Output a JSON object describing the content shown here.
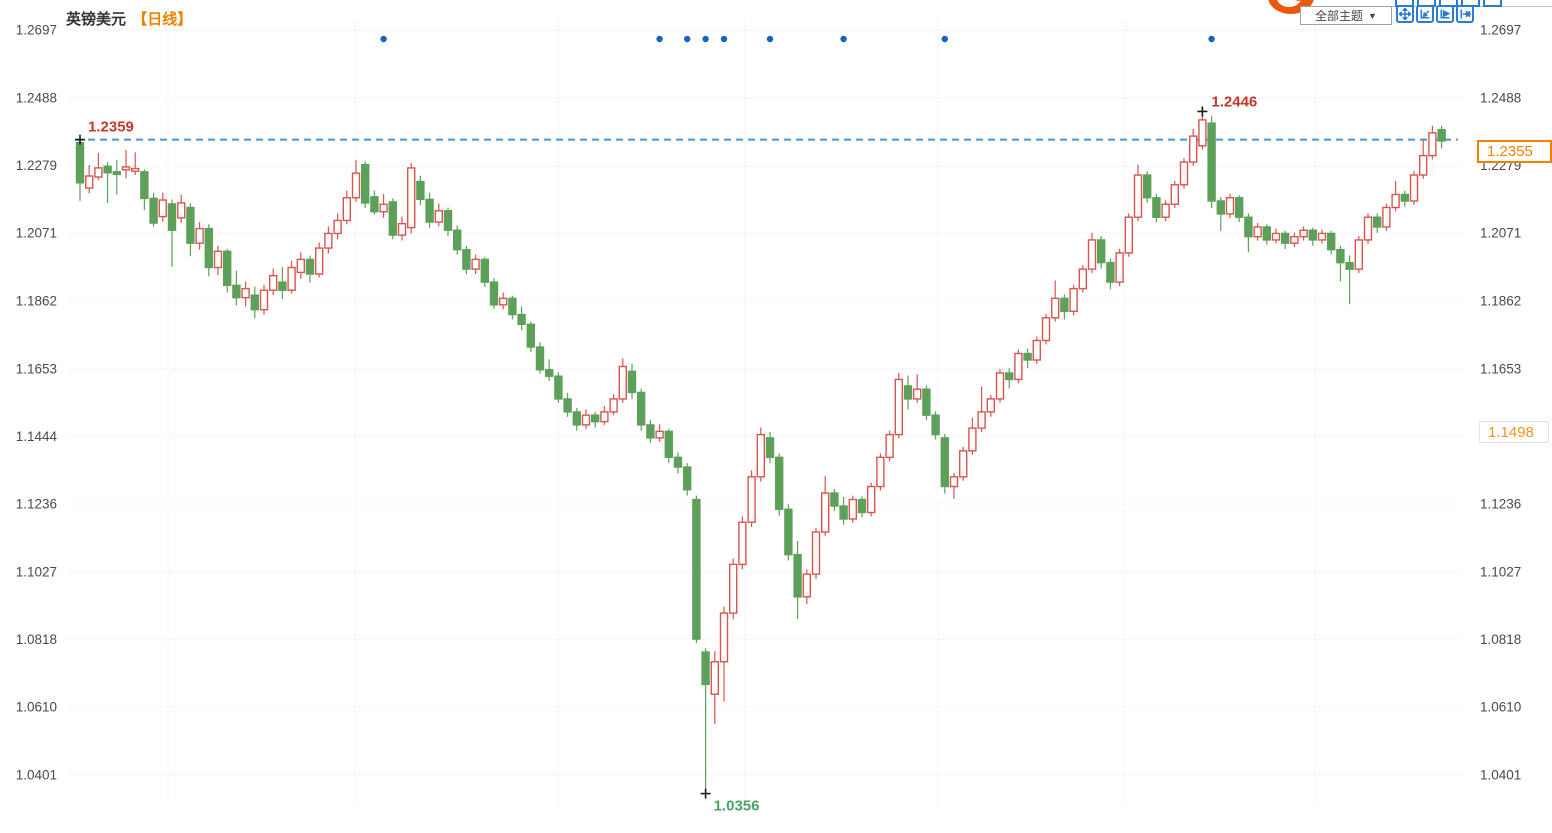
{
  "header": {
    "symbol": "英镑美元",
    "period": "【日线】"
  },
  "toolbar": {
    "themes_label": "全部主题",
    "dropdown_arrow": "▼",
    "icon_names": [
      "pan-move-icon",
      "zoom-corner-icon",
      "play-forward-icon",
      "shift-right-icon"
    ]
  },
  "colors": {
    "up": "#d9544f",
    "down": "#5da05a",
    "grid": "#dedede",
    "axis_text": "#4a4a4a",
    "ref_line": "#4a97e0",
    "event_dot": "#1565c0",
    "accent_orange": "#f08200",
    "annotation_red": "#c0392b",
    "annotation_green": "#4aa564",
    "marker_cross": "#1a1a1a"
  },
  "chart_data": {
    "type": "candlestick",
    "title": "英镑美元",
    "interval": "日线",
    "legend_position": "none",
    "grid": true,
    "y_axis": {
      "max": 1.2697,
      "min": 1.0401,
      "ticks": [
        1.2697,
        1.2488,
        1.2279,
        1.2071,
        1.1862,
        1.1653,
        1.1444,
        1.1236,
        1.1027,
        1.0818,
        1.061,
        1.0401
      ]
    },
    "vertical_gridlines_x": [
      168,
      355,
      558,
      745,
      938,
      1125,
      1315
    ],
    "reference_line": {
      "price": 1.2359,
      "label": "1.2359"
    },
    "peak_marker": {
      "candle_index": 122,
      "price": 1.2446,
      "label": "1.2446"
    },
    "low_marker": {
      "candle_index": 68,
      "price": 1.0356,
      "label": "1.0356"
    },
    "price_tags": [
      {
        "label": "1.2355",
        "price": 1.2355,
        "style": "strong"
      },
      {
        "label": "1.1498",
        "price": 1.1498,
        "style": "light"
      }
    ],
    "event_dot_indices": [
      33,
      63,
      66,
      68,
      70,
      75,
      83,
      94,
      123
    ],
    "candles": [
      [
        1.235,
        1.2359,
        1.217,
        1.2226
      ],
      [
        1.221,
        1.2281,
        1.2194,
        1.2247
      ],
      [
        1.2244,
        1.2318,
        1.2235,
        1.2272
      ],
      [
        1.2277,
        1.229,
        1.2164,
        1.2257
      ],
      [
        1.226,
        1.2297,
        1.219,
        1.2252
      ],
      [
        1.2266,
        1.2327,
        1.224,
        1.2275
      ],
      [
        1.2262,
        1.232,
        1.225,
        1.227
      ],
      [
        1.226,
        1.2268,
        1.2142,
        1.2178
      ],
      [
        1.2178,
        1.2195,
        1.2091,
        1.2102
      ],
      [
        1.2122,
        1.2196,
        1.2106,
        1.2173
      ],
      [
        1.2161,
        1.2175,
        1.1967,
        1.208
      ],
      [
        1.2118,
        1.2189,
        1.2103,
        1.2164
      ],
      [
        1.215,
        1.2162,
        1.2,
        1.204
      ],
      [
        1.204,
        1.2105,
        1.202,
        1.2085
      ],
      [
        1.2085,
        1.2098,
        1.1938,
        1.1965
      ],
      [
        1.1965,
        1.2032,
        1.1942,
        1.2015
      ],
      [
        1.2015,
        1.2022,
        1.1888,
        1.191
      ],
      [
        1.191,
        1.1955,
        1.1848,
        1.1872
      ],
      [
        1.1872,
        1.1922,
        1.1845,
        1.19
      ],
      [
        1.188,
        1.1906,
        1.1808,
        1.1835
      ],
      [
        1.1835,
        1.1912,
        1.182,
        1.1895
      ],
      [
        1.1895,
        1.1962,
        1.188,
        1.194
      ],
      [
        1.192,
        1.1966,
        1.1868,
        1.1895
      ],
      [
        1.1895,
        1.1986,
        1.1885,
        1.1965
      ],
      [
        1.195,
        1.2012,
        1.193,
        1.199
      ],
      [
        1.199,
        1.2002,
        1.1918,
        1.1945
      ],
      [
        1.1945,
        1.2042,
        1.1935,
        1.2025
      ],
      [
        1.2025,
        1.2092,
        1.2008,
        1.207
      ],
      [
        1.207,
        1.2132,
        1.2052,
        1.211
      ],
      [
        1.211,
        1.2202,
        1.2098,
        1.218
      ],
      [
        1.218,
        1.2296,
        1.2168,
        1.2256
      ],
      [
        1.2282,
        1.2292,
        1.2148,
        1.2164
      ],
      [
        1.2183,
        1.2202,
        1.2128,
        1.2137
      ],
      [
        1.2137,
        1.2192,
        1.2118,
        1.216
      ],
      [
        1.2167,
        1.2178,
        1.2052,
        1.2065
      ],
      [
        1.2065,
        1.2122,
        1.2048,
        1.21
      ],
      [
        1.2088,
        1.2287,
        1.207,
        1.2272
      ],
      [
        1.223,
        1.2248,
        1.2158,
        1.2175
      ],
      [
        1.2175,
        1.2196,
        1.2088,
        1.2105
      ],
      [
        1.2105,
        1.2162,
        1.2092,
        1.214
      ],
      [
        1.214,
        1.215,
        1.2062,
        1.208
      ],
      [
        1.208,
        1.2095,
        1.2005,
        1.202
      ],
      [
        1.202,
        1.2032,
        1.1945,
        1.196
      ],
      [
        1.196,
        1.2005,
        1.1945,
        1.199
      ],
      [
        1.199,
        1.1998,
        1.1905,
        1.192
      ],
      [
        1.192,
        1.1932,
        1.1838,
        1.185
      ],
      [
        1.185,
        1.1888,
        1.1836,
        1.187
      ],
      [
        1.187,
        1.1878,
        1.1805,
        1.182
      ],
      [
        1.182,
        1.1845,
        1.1772,
        1.179
      ],
      [
        1.179,
        1.1798,
        1.1705,
        1.172
      ],
      [
        1.172,
        1.1735,
        1.1638,
        1.165
      ],
      [
        1.165,
        1.1682,
        1.1615,
        1.163
      ],
      [
        1.163,
        1.1642,
        1.1548,
        1.156
      ],
      [
        1.156,
        1.1578,
        1.1505,
        1.152
      ],
      [
        1.152,
        1.1532,
        1.1462,
        1.148
      ],
      [
        1.148,
        1.1528,
        1.1468,
        1.151
      ],
      [
        1.151,
        1.152,
        1.1472,
        1.149
      ],
      [
        1.149,
        1.1538,
        1.148,
        1.152
      ],
      [
        1.152,
        1.1575,
        1.151,
        1.156
      ],
      [
        1.156,
        1.1685,
        1.1548,
        1.166
      ],
      [
        1.1645,
        1.1668,
        1.156,
        1.158
      ],
      [
        1.158,
        1.1592,
        1.1462,
        1.148
      ],
      [
        1.148,
        1.1495,
        1.1425,
        1.144
      ],
      [
        1.144,
        1.1482,
        1.1428,
        1.146
      ],
      [
        1.146,
        1.1468,
        1.1362,
        1.138
      ],
      [
        1.138,
        1.1395,
        1.133,
        1.135
      ],
      [
        1.135,
        1.1362,
        1.1262,
        1.128
      ],
      [
        1.125,
        1.1262,
        1.0808,
        1.082
      ],
      [
        1.078,
        1.0792,
        1.0356,
        1.068
      ],
      [
        1.065,
        1.0782,
        1.0558,
        1.075
      ],
      [
        1.075,
        1.092,
        1.0628,
        1.09
      ],
      [
        1.09,
        1.1068,
        1.088,
        1.105
      ],
      [
        1.105,
        1.1198,
        1.1035,
        1.118
      ],
      [
        1.118,
        1.134,
        1.1165,
        1.132
      ],
      [
        1.132,
        1.1472,
        1.1305,
        1.145
      ],
      [
        1.144,
        1.1458,
        1.1362,
        1.138
      ],
      [
        1.138,
        1.1392,
        1.12,
        1.122
      ],
      [
        1.122,
        1.1235,
        1.1062,
        1.108
      ],
      [
        1.108,
        1.1122,
        1.0882,
        1.095
      ],
      [
        1.095,
        1.1035,
        1.0928,
        1.102
      ],
      [
        1.102,
        1.1162,
        1.1005,
        1.115
      ],
      [
        1.115,
        1.1322,
        1.1138,
        1.127
      ],
      [
        1.127,
        1.1282,
        1.1215,
        1.123
      ],
      [
        1.123,
        1.1258,
        1.1172,
        1.119
      ],
      [
        1.119,
        1.1262,
        1.1178,
        1.125
      ],
      [
        1.125,
        1.126,
        1.1195,
        1.121
      ],
      [
        1.121,
        1.1302,
        1.1198,
        1.129
      ],
      [
        1.129,
        1.1392,
        1.1278,
        1.138
      ],
      [
        1.138,
        1.1462,
        1.1368,
        1.145
      ],
      [
        1.145,
        1.164,
        1.1438,
        1.162
      ],
      [
        1.16,
        1.1632,
        1.1528,
        1.156
      ],
      [
        1.156,
        1.1636,
        1.1548,
        1.159
      ],
      [
        1.159,
        1.1602,
        1.1495,
        1.151
      ],
      [
        1.151,
        1.1522,
        1.1435,
        1.145
      ],
      [
        1.144,
        1.1452,
        1.1268,
        1.129
      ],
      [
        1.129,
        1.1332,
        1.1252,
        1.132
      ],
      [
        1.132,
        1.1412,
        1.1308,
        1.14
      ],
      [
        1.14,
        1.1502,
        1.1388,
        1.147
      ],
      [
        1.147,
        1.1598,
        1.1458,
        1.152
      ],
      [
        1.152,
        1.1572,
        1.1505,
        1.156
      ],
      [
        1.156,
        1.1652,
        1.1548,
        1.164
      ],
      [
        1.164,
        1.1655,
        1.1592,
        1.162
      ],
      [
        1.162,
        1.1712,
        1.1608,
        1.17
      ],
      [
        1.17,
        1.1715,
        1.1655,
        1.168
      ],
      [
        1.168,
        1.1752,
        1.1668,
        1.174
      ],
      [
        1.174,
        1.1822,
        1.1728,
        1.181
      ],
      [
        1.181,
        1.1925,
        1.1798,
        1.187
      ],
      [
        1.187,
        1.1882,
        1.1805,
        1.183
      ],
      [
        1.183,
        1.1912,
        1.1818,
        1.19
      ],
      [
        1.19,
        1.1972,
        1.1888,
        1.196
      ],
      [
        1.196,
        1.2072,
        1.1948,
        1.205
      ],
      [
        1.205,
        1.2062,
        1.1962,
        1.198
      ],
      [
        1.198,
        1.1992,
        1.1898,
        1.192
      ],
      [
        1.192,
        1.2022,
        1.1908,
        1.201
      ],
      [
        1.201,
        1.2132,
        1.1998,
        1.212
      ],
      [
        1.212,
        1.2282,
        1.2108,
        1.225
      ],
      [
        1.225,
        1.2262,
        1.2165,
        1.218
      ],
      [
        1.218,
        1.2192,
        1.2105,
        1.212
      ],
      [
        1.212,
        1.2172,
        1.2108,
        1.216
      ],
      [
        1.216,
        1.2232,
        1.2148,
        1.222
      ],
      [
        1.222,
        1.2302,
        1.2208,
        1.229
      ],
      [
        1.229,
        1.2392,
        1.2278,
        1.237
      ],
      [
        1.234,
        1.2446,
        1.2328,
        1.242
      ],
      [
        1.241,
        1.2432,
        1.2148,
        1.217
      ],
      [
        1.217,
        1.2182,
        1.2078,
        1.213
      ],
      [
        1.213,
        1.2192,
        1.2118,
        1.218
      ],
      [
        1.218,
        1.2188,
        1.2105,
        1.212
      ],
      [
        1.212,
        1.2132,
        1.2012,
        1.206
      ],
      [
        1.206,
        1.2102,
        1.2048,
        1.209
      ],
      [
        1.209,
        1.2098,
        1.2035,
        1.205
      ],
      [
        1.205,
        1.2085,
        1.204,
        1.207
      ],
      [
        1.207,
        1.2078,
        1.2022,
        1.204
      ],
      [
        1.204,
        1.2072,
        1.2028,
        1.206
      ],
      [
        1.206,
        1.2092,
        1.2048,
        1.208
      ],
      [
        1.208,
        1.2088,
        1.2032,
        1.205
      ],
      [
        1.205,
        1.2082,
        1.2038,
        1.207
      ],
      [
        1.207,
        1.2078,
        1.2005,
        1.202
      ],
      [
        1.202,
        1.2032,
        1.1922,
        1.198
      ],
      [
        1.198,
        1.2002,
        1.1852,
        1.196
      ],
      [
        1.196,
        1.2062,
        1.1948,
        1.205
      ],
      [
        1.205,
        1.2132,
        1.2038,
        1.212
      ],
      [
        1.212,
        1.2132,
        1.2072,
        1.209
      ],
      [
        1.209,
        1.2162,
        1.2078,
        1.215
      ],
      [
        1.215,
        1.2232,
        1.2138,
        1.219
      ],
      [
        1.219,
        1.2202,
        1.2152,
        1.217
      ],
      [
        1.217,
        1.2262,
        1.2158,
        1.225
      ],
      [
        1.225,
        1.2362,
        1.2238,
        1.231
      ],
      [
        1.231,
        1.2402,
        1.2298,
        1.238
      ],
      [
        1.239,
        1.2402,
        1.2332,
        1.2355
      ]
    ]
  }
}
